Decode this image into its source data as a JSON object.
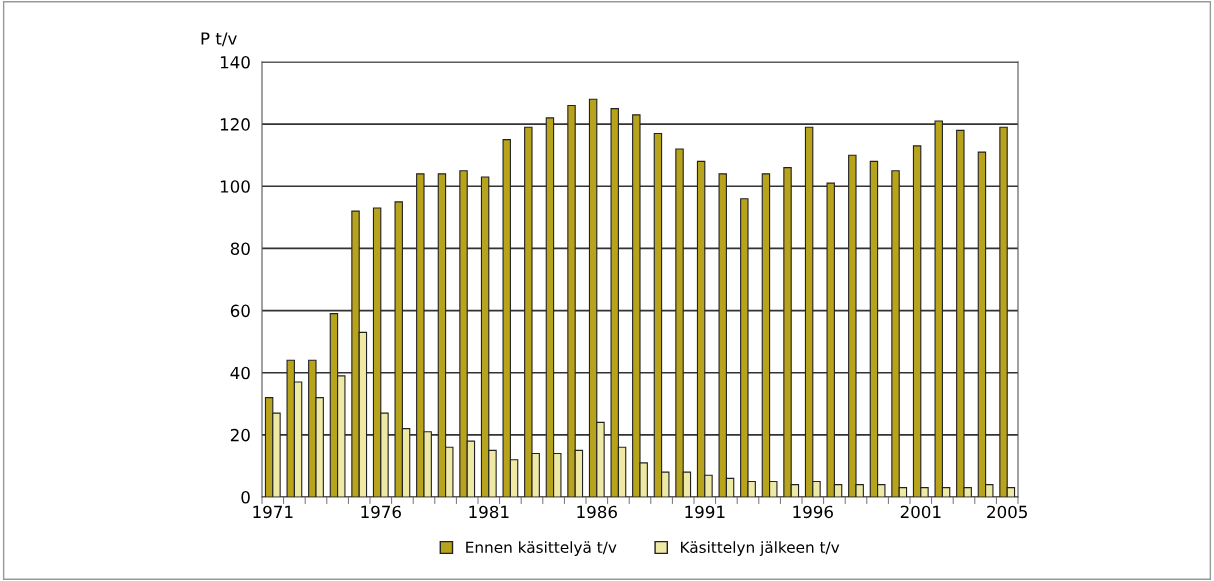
{
  "chart_data": {
    "type": "bar",
    "ylabel": "P t/v",
    "categories": [
      "1971",
      null,
      null,
      null,
      null,
      "1976",
      null,
      null,
      null,
      null,
      "1981",
      null,
      null,
      null,
      null,
      "1986",
      null,
      null,
      null,
      null,
      "1991",
      null,
      null,
      null,
      null,
      "1996",
      null,
      null,
      null,
      null,
      "2001",
      null,
      null,
      null,
      "2005"
    ],
    "series": [
      {
        "name": "Ennen käsittelyä t/v",
        "color": "#b8a41c",
        "values": [
          32,
          44,
          44,
          59,
          92,
          93,
          95,
          104,
          104,
          105,
          103,
          115,
          119,
          122,
          126,
          128,
          125,
          123,
          117,
          112,
          108,
          104,
          96,
          104,
          106,
          119,
          101,
          110,
          108,
          105,
          113,
          121,
          118,
          111,
          119
        ]
      },
      {
        "name": "Käsittelyn jälkeen t/v",
        "color": "#eeeaa6",
        "values": [
          27,
          37,
          32,
          39,
          53,
          27,
          22,
          21,
          16,
          18,
          15,
          12,
          14,
          14,
          15,
          24,
          16,
          11,
          8,
          8,
          7,
          6,
          5,
          5,
          4,
          5,
          4,
          4,
          4,
          3,
          3,
          3,
          3,
          4,
          3
        ]
      }
    ],
    "ylim": [
      0,
      140
    ],
    "yticks": [
      0,
      20,
      40,
      60,
      80,
      100,
      120,
      140
    ],
    "grid": "y",
    "legend": "bottom"
  }
}
